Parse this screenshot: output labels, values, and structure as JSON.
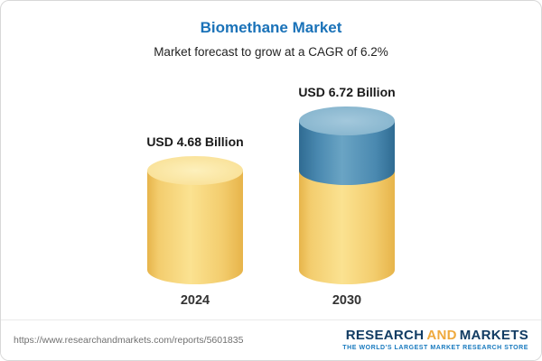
{
  "chart_data": {
    "type": "bar",
    "title": "Biomethane Market",
    "subtitle": "Market forecast to grow at a CAGR of 6.2%",
    "unit": "USD Billion",
    "categories": [
      "2024",
      "2030"
    ],
    "values": [
      4.68,
      6.72
    ],
    "ylim": [
      0,
      7
    ],
    "legend": "none",
    "grid": false,
    "bars": [
      {
        "category": "2024",
        "value": 4.68,
        "label": "USD 4.68 Billion",
        "segments": [
          {
            "color_key": "yellow",
            "value": 4.68
          }
        ]
      },
      {
        "category": "2030",
        "value": 6.72,
        "label": "USD 6.72 Billion",
        "segments": [
          {
            "color_key": "yellow",
            "value": 4.68
          },
          {
            "color_key": "blue",
            "value": 2.04
          }
        ]
      }
    ],
    "colors": {
      "yellow": "#f6c95c",
      "blue": "#4181ab",
      "title": "#1a72b8"
    }
  },
  "footer": {
    "url": "https://www.researchandmarkets.com/reports/5601835",
    "logo_part1": "RESEARCH",
    "logo_part2": "AND",
    "logo_part3": "MARKETS",
    "logo_tagline": "THE WORLD'S LARGEST MARKET RESEARCH STORE"
  }
}
